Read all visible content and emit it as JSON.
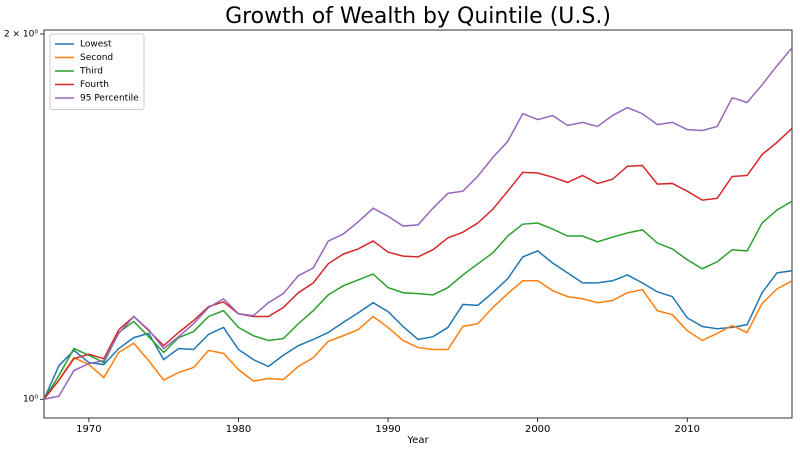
{
  "chart_data": {
    "type": "line",
    "title": "Growth of Wealth by Quintile (U.S.)",
    "xlabel": "Year",
    "x": [
      1967,
      1968,
      1969,
      1970,
      1971,
      1972,
      1973,
      1974,
      1975,
      1976,
      1977,
      1978,
      1979,
      1980,
      1981,
      1982,
      1983,
      1984,
      1985,
      1986,
      1987,
      1988,
      1989,
      1990,
      1991,
      1992,
      1993,
      1994,
      1995,
      1996,
      1997,
      1998,
      1999,
      2000,
      2001,
      2002,
      2003,
      2004,
      2005,
      2006,
      2007,
      2008,
      2009,
      2010,
      2011,
      2012,
      2013,
      2014,
      2015,
      2016,
      2017
    ],
    "xlim": [
      1967,
      2017
    ],
    "xticks": [
      1970,
      1980,
      1990,
      2000,
      2010
    ],
    "ylim": [
      0.965,
      2.015
    ],
    "yscale": "log",
    "yticks": [
      {
        "value": 1,
        "label": "10⁰"
      },
      {
        "value": 2,
        "label": "2 × 10⁰"
      }
    ],
    "legend": "upper left",
    "series": [
      {
        "name": "Lowest",
        "color": "#1f77b4",
        "values": [
          1,
          1.066,
          1.097,
          1.072,
          1.068,
          1.101,
          1.124,
          1.133,
          1.078,
          1.101,
          1.099,
          1.131,
          1.146,
          1.099,
          1.078,
          1.064,
          1.087,
          1.107,
          1.12,
          1.135,
          1.157,
          1.178,
          1.201,
          1.181,
          1.148,
          1.12,
          1.126,
          1.146,
          1.197,
          1.195,
          1.224,
          1.257,
          1.31,
          1.325,
          1.295,
          1.271,
          1.247,
          1.247,
          1.252,
          1.266,
          1.247,
          1.226,
          1.215,
          1.167,
          1.148,
          1.143,
          1.146,
          1.152,
          1.224,
          1.271,
          1.276
        ]
      },
      {
        "name": "Second",
        "color": "#ff7f0e",
        "values": [
          1,
          1.037,
          1.082,
          1.068,
          1.042,
          1.093,
          1.112,
          1.076,
          1.037,
          1.052,
          1.062,
          1.097,
          1.091,
          1.058,
          1.035,
          1.04,
          1.038,
          1.064,
          1.082,
          1.116,
          1.128,
          1.141,
          1.17,
          1.146,
          1.118,
          1.103,
          1.099,
          1.099,
          1.148,
          1.154,
          1.19,
          1.222,
          1.252,
          1.252,
          1.229,
          1.215,
          1.21,
          1.201,
          1.206,
          1.224,
          1.231,
          1.183,
          1.174,
          1.139,
          1.118,
          1.133,
          1.15,
          1.135,
          1.199,
          1.233,
          1.252
        ]
      },
      {
        "name": "Third",
        "color": "#2ca02c",
        "values": [
          1,
          1.046,
          1.101,
          1.087,
          1.072,
          1.135,
          1.159,
          1.126,
          1.093,
          1.124,
          1.137,
          1.17,
          1.183,
          1.146,
          1.128,
          1.118,
          1.122,
          1.154,
          1.183,
          1.219,
          1.24,
          1.254,
          1.268,
          1.236,
          1.224,
          1.222,
          1.219,
          1.236,
          1.266,
          1.293,
          1.32,
          1.363,
          1.394,
          1.397,
          1.381,
          1.363,
          1.363,
          1.348,
          1.36,
          1.371,
          1.379,
          1.345,
          1.33,
          1.303,
          1.281,
          1.298,
          1.328,
          1.325,
          1.397,
          1.432,
          1.456
        ]
      },
      {
        "name": "Fourth",
        "color": "#d62728",
        "values": [
          1,
          1.037,
          1.08,
          1.089,
          1.08,
          1.141,
          1.17,
          1.139,
          1.107,
          1.135,
          1.161,
          1.192,
          1.203,
          1.176,
          1.17,
          1.17,
          1.19,
          1.224,
          1.247,
          1.293,
          1.317,
          1.33,
          1.35,
          1.322,
          1.312,
          1.31,
          1.328,
          1.358,
          1.373,
          1.397,
          1.434,
          1.484,
          1.538,
          1.536,
          1.524,
          1.509,
          1.529,
          1.506,
          1.518,
          1.556,
          1.558,
          1.504,
          1.506,
          1.484,
          1.459,
          1.464,
          1.526,
          1.529,
          1.591,
          1.628,
          1.672
        ]
      },
      {
        "name": "95 Percentile",
        "color": "#9467bd",
        "values": [
          1,
          1.006,
          1.056,
          1.07,
          1.076,
          1.133,
          1.17,
          1.141,
          1.101,
          1.126,
          1.154,
          1.19,
          1.21,
          1.176,
          1.172,
          1.201,
          1.222,
          1.264,
          1.283,
          1.35,
          1.368,
          1.4,
          1.437,
          1.415,
          1.389,
          1.392,
          1.437,
          1.478,
          1.484,
          1.527,
          1.582,
          1.631,
          1.719,
          1.7,
          1.713,
          1.681,
          1.691,
          1.678,
          1.713,
          1.739,
          1.719,
          1.684,
          1.691,
          1.668,
          1.665,
          1.678,
          1.772,
          1.756,
          1.816,
          1.883,
          1.948
        ]
      }
    ]
  }
}
